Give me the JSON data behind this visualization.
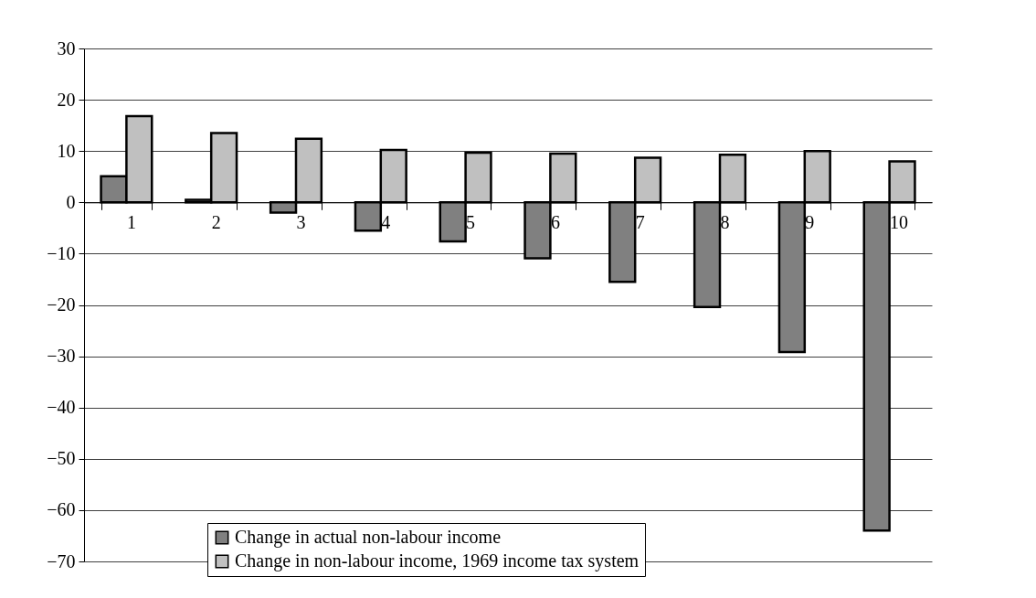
{
  "chart_data": {
    "type": "bar",
    "categories": [
      "1",
      "2",
      "3",
      "4",
      "5",
      "6",
      "7",
      "8",
      "9",
      "10"
    ],
    "series": [
      {
        "name": "Change in actual non-labour income",
        "color": "#808080",
        "values": [
          5.1,
          0.5,
          -2,
          -5.5,
          -7.6,
          -10.9,
          -15.5,
          -20.4,
          -29.2,
          -64
        ]
      },
      {
        "name": "Change in non-labour income, 1969 income tax system",
        "color": "#c0c0c0",
        "values": [
          16.8,
          13.5,
          12.4,
          10.2,
          9.7,
          9.5,
          8.7,
          9.3,
          10,
          8
        ]
      }
    ],
    "ylim": [
      -70,
      30
    ],
    "yticks": [
      -70,
      -60,
      -50,
      -40,
      -30,
      -20,
      -10,
      0,
      10,
      20,
      30
    ],
    "grid": "y",
    "legend": "bottom"
  }
}
